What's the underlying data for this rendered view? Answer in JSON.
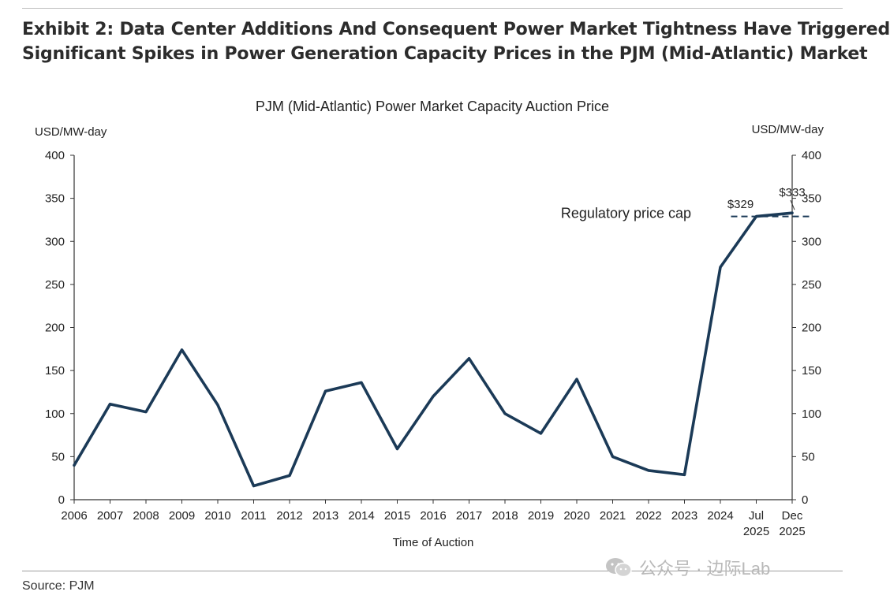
{
  "headline": {
    "line1": "Exhibit 2: Data Center Additions And Consequent Power Market Tightness Have Triggered",
    "line2": "Significant Spikes in Power Generation Capacity Prices in the PJM (Mid-Atlantic) Market"
  },
  "source": "Source: PJM",
  "watermark": {
    "text": "公众号 · 边际Lab",
    "icon": "wechat-icon"
  },
  "colors": {
    "line": "#1b3a57",
    "axis": "#333333",
    "text": "#222222"
  },
  "chart_data": {
    "type": "line",
    "title": "PJM (Mid-Atlantic) Power Market Capacity Auction Price",
    "xlabel": "Time of Auction",
    "ylabel_left": "USD/MW-day",
    "ylabel_right": "USD/MW-day",
    "ylim": [
      0,
      400
    ],
    "yticks": [
      0,
      50,
      100,
      150,
      200,
      250,
      300,
      350,
      400
    ],
    "grid": false,
    "categories": [
      [
        "2006"
      ],
      [
        "2007"
      ],
      [
        "2008"
      ],
      [
        "2009"
      ],
      [
        "2010"
      ],
      [
        "2011"
      ],
      [
        "2012"
      ],
      [
        "2013"
      ],
      [
        "2014"
      ],
      [
        "2015"
      ],
      [
        "2016"
      ],
      [
        "2017"
      ],
      [
        "2018"
      ],
      [
        "2019"
      ],
      [
        "2020"
      ],
      [
        "2021"
      ],
      [
        "2022"
      ],
      [
        "2023"
      ],
      [
        "2024"
      ],
      [
        "Jul",
        "2025"
      ],
      [
        "Dec",
        "2025"
      ]
    ],
    "series": [
      {
        "name": "Capacity auction price",
        "values": [
          40,
          111,
          102,
          174,
          110,
          16,
          28,
          126,
          136,
          59,
          120,
          164,
          100,
          77,
          140,
          50,
          34,
          29,
          270,
          329,
          333
        ]
      }
    ],
    "reference_line": {
      "label": "Regulatory price cap",
      "value": 329
    },
    "data_labels": [
      {
        "text": "$329",
        "index": 19
      },
      {
        "text": "$333",
        "index": 20
      }
    ]
  }
}
